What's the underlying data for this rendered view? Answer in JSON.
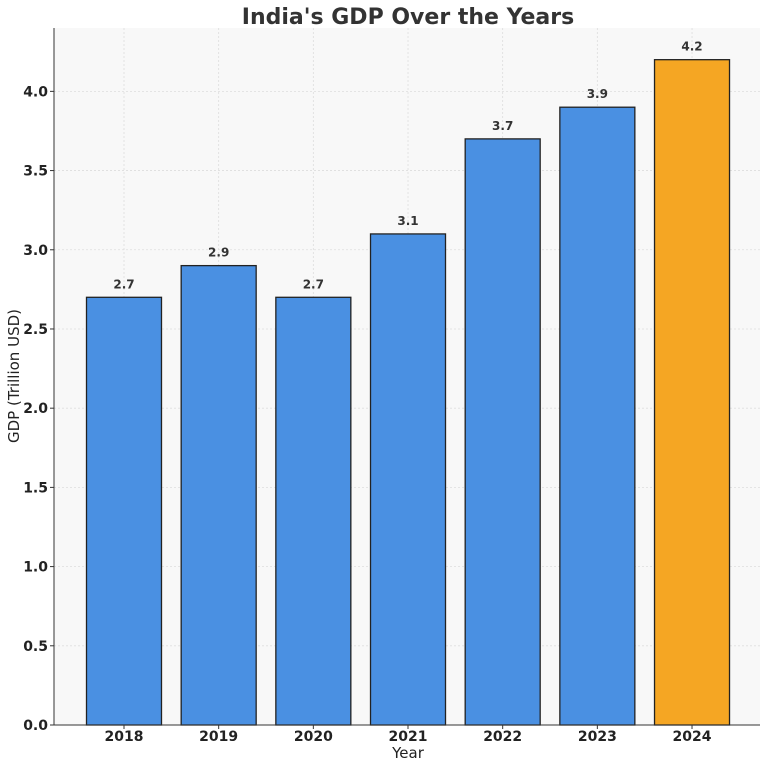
{
  "chart_data": {
    "type": "bar",
    "title": "India's GDP Over the Years",
    "xlabel": "Year",
    "ylabel": "GDP (Trillion USD)",
    "categories": [
      "2018",
      "2019",
      "2020",
      "2021",
      "2022",
      "2023",
      "2024"
    ],
    "values": [
      2.7,
      2.9,
      2.7,
      3.1,
      3.7,
      3.9,
      4.2
    ],
    "value_labels": [
      "2.7",
      "2.9",
      "2.7",
      "3.1",
      "3.7",
      "3.9",
      "4.2"
    ],
    "ylim": [
      0,
      4.4
    ],
    "yticks": [
      0.0,
      0.5,
      1.0,
      1.5,
      2.0,
      2.5,
      3.0,
      3.5,
      4.0
    ],
    "ytick_labels": [
      "0.0",
      "0.5",
      "1.0",
      "1.5",
      "2.0",
      "2.5",
      "3.0",
      "3.5",
      "4.0"
    ],
    "grid": true,
    "colors": {
      "default_bar": "#4a90e2",
      "highlight_bar": "#f5a623",
      "bar_edge": "#222222",
      "plot_background": "#f8f8f8"
    },
    "highlight_category": "2024"
  }
}
